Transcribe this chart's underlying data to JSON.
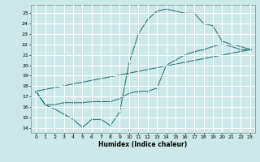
{
  "xlabel": "Humidex (Indice chaleur)",
  "xlim": [
    -0.5,
    23.5
  ],
  "ylim": [
    13.5,
    25.8
  ],
  "yticks": [
    14,
    15,
    16,
    17,
    18,
    19,
    20,
    21,
    22,
    23,
    24,
    25
  ],
  "xticks": [
    0,
    1,
    2,
    3,
    4,
    5,
    6,
    7,
    8,
    9,
    10,
    11,
    12,
    13,
    14,
    15,
    16,
    17,
    18,
    19,
    20,
    21,
    22,
    23
  ],
  "bg_color": "#cce8e8",
  "grid_color": "#ffffff",
  "line_color": "#1a6b6b",
  "lines": [
    {
      "x": [
        0,
        1,
        2,
        3,
        4,
        5,
        6,
        7,
        8,
        9,
        10,
        11,
        12,
        13,
        14,
        15,
        16,
        17,
        18,
        19,
        20,
        21,
        22,
        23
      ],
      "y": [
        17.5,
        16.2,
        15.8,
        15.3,
        14.8,
        14.0,
        14.8,
        14.8,
        14.2,
        15.5,
        20.2,
        23.0,
        24.4,
        25.2,
        25.4,
        25.2,
        25.0,
        25.0,
        24.0,
        23.8,
        22.3,
        22.0,
        21.8,
        21.5
      ]
    },
    {
      "x": [
        0,
        1,
        2,
        3,
        4,
        5,
        6,
        7,
        8,
        9,
        10,
        11,
        12,
        13,
        14,
        15,
        16,
        17,
        18,
        19,
        20,
        21,
        22,
        23
      ],
      "y": [
        17.5,
        16.2,
        16.2,
        16.4,
        16.4,
        16.4,
        16.5,
        16.5,
        16.5,
        16.8,
        17.3,
        17.5,
        17.5,
        17.8,
        20.0,
        20.5,
        21.0,
        21.3,
        21.5,
        21.8,
        22.0,
        21.8,
        21.5,
        21.5
      ]
    },
    {
      "comment": "diagonal from 0,17.5 to 23,21.5",
      "x": [
        0,
        23
      ],
      "y": [
        17.5,
        21.5
      ]
    }
  ]
}
